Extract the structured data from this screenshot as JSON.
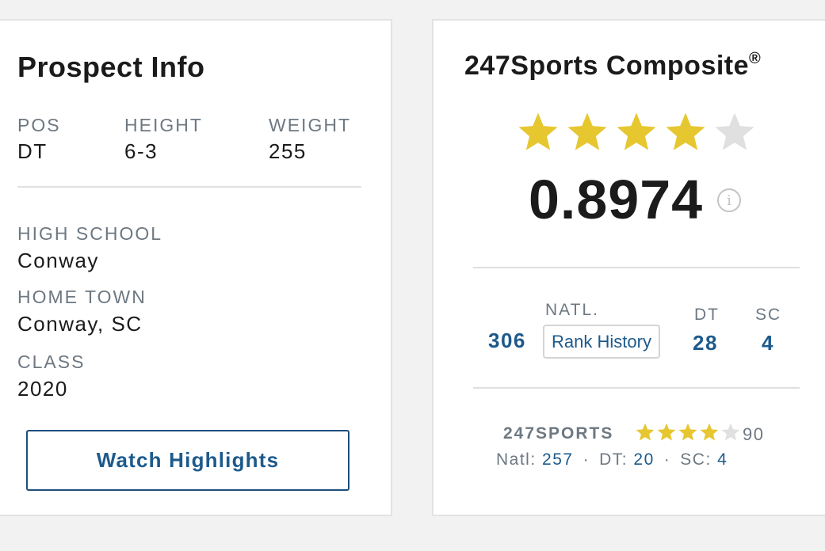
{
  "prospect": {
    "title": "Prospect Info",
    "pos_label": "POS",
    "pos_value": "DT",
    "height_label": "HEIGHT",
    "height_value": "6-3",
    "weight_label": "WEIGHT",
    "weight_value": "255",
    "school_label": "HIGH SCHOOL",
    "school_value": "Conway",
    "hometown_label": "HOME TOWN",
    "hometown_value": "Conway, SC",
    "class_label": "CLASS",
    "class_value": "2020",
    "highlights_button": "Watch Highlights"
  },
  "composite": {
    "title": "247Sports Composite",
    "registered": "®",
    "stars_filled": 4,
    "stars_total": 5,
    "rating": "0.8974",
    "info_icon": "info-icon",
    "natl_label": "NATL.",
    "natl_value": "306",
    "rank_history_button": "Rank History",
    "pos_label": "DT",
    "pos_value": "28",
    "state_label": "SC",
    "state_value": "4"
  },
  "sports247": {
    "label": "247SPORTS",
    "stars_filled": 4,
    "stars_total": 5,
    "rating": "90",
    "natl_label": "Natl:",
    "natl_value": "257",
    "pos_label": "DT:",
    "pos_value": "20",
    "state_label": "SC:",
    "state_value": "4",
    "separator": "·"
  },
  "colors": {
    "star_filled": "#e6c730",
    "star_empty": "#e0e0e0",
    "link_blue": "#1d5a8c",
    "label_gray": "#6e7882"
  }
}
